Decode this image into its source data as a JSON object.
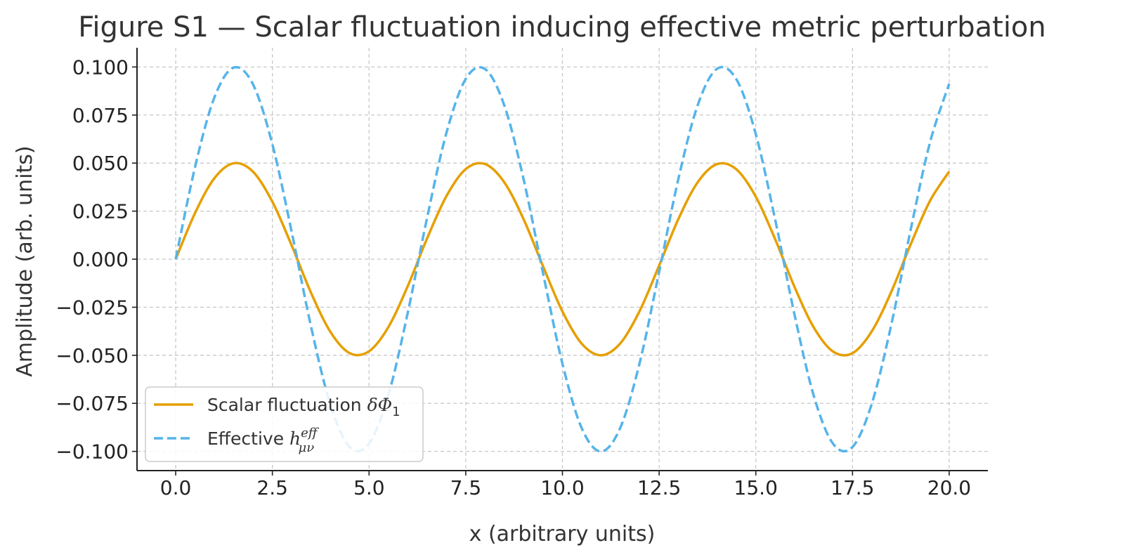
{
  "chart_data": {
    "type": "line",
    "title": "Figure S1 — Scalar fluctuation inducing effective metric perturbation",
    "xlabel": "x (arbitrary units)",
    "ylabel": "Amplitude (arb. units)",
    "xlim": [
      -1.0,
      21.0
    ],
    "ylim": [
      -0.11,
      0.11
    ],
    "xticks": [
      0.0,
      2.5,
      5.0,
      7.5,
      10.0,
      12.5,
      15.0,
      17.5,
      20.0
    ],
    "xtick_labels": [
      "0.0",
      "2.5",
      "5.0",
      "7.5",
      "10.0",
      "12.5",
      "15.0",
      "17.5",
      "20.0"
    ],
    "yticks": [
      0.1,
      0.075,
      0.05,
      0.025,
      0.0,
      -0.025,
      -0.05,
      -0.075,
      -0.1
    ],
    "ytick_labels": [
      "0.100",
      "0.075",
      "0.050",
      "0.025",
      "0.000",
      "−0.025",
      "−0.050",
      "−0.075",
      "−0.100"
    ],
    "grid": true,
    "grid_style": "dashed",
    "legend_position": "lower-left",
    "x": [
      0.0,
      0.5,
      1.0,
      1.5,
      2.0,
      2.5,
      3.0,
      3.5,
      4.0,
      4.5,
      5.0,
      5.5,
      6.0,
      6.5,
      7.0,
      7.5,
      8.0,
      8.5,
      9.0,
      9.5,
      10.0,
      10.5,
      11.0,
      11.5,
      12.0,
      12.5,
      13.0,
      13.5,
      14.0,
      14.5,
      15.0,
      15.5,
      16.0,
      16.5,
      17.0,
      17.5,
      18.0,
      18.5,
      19.0,
      19.5,
      20.0
    ],
    "series": [
      {
        "name": "Scalar fluctuation δΦ₁",
        "legend_prefix": "Scalar fluctuation ",
        "legend_math": "δΦ",
        "legend_sub": "1",
        "color": "#E69F00",
        "style": "solid",
        "values": [
          0.0,
          0.024,
          0.0421,
          0.0499,
          0.0455,
          0.0299,
          0.0071,
          -0.0175,
          -0.0378,
          -0.0489,
          -0.0479,
          -0.0353,
          -0.014,
          0.0108,
          0.0328,
          0.0469,
          0.0495,
          0.0399,
          0.0206,
          -0.0038,
          -0.0272,
          -0.044,
          -0.05,
          -0.0437,
          -0.0268,
          -0.0033,
          0.021,
          0.0401,
          0.0495,
          0.0467,
          0.0325,
          0.0104,
          -0.0144,
          -0.0356,
          -0.0481,
          -0.0489,
          -0.0375,
          -0.0171,
          0.0075,
          0.0302,
          0.0456
        ]
      },
      {
        "name": "Effective h_μν^eff",
        "legend_prefix": "Effective ",
        "legend_math": "h",
        "legend_sub": "μν",
        "legend_sup": "eff",
        "color": "#56B4E9",
        "style": "dashed",
        "values": [
          0.0,
          0.0479,
          0.0841,
          0.0997,
          0.0909,
          0.0598,
          0.0141,
          -0.0351,
          -0.0757,
          -0.0978,
          -0.0959,
          -0.0706,
          -0.0279,
          0.0215,
          0.0657,
          0.0938,
          0.0989,
          0.0798,
          0.0412,
          -0.0075,
          -0.0544,
          -0.088,
          -0.1,
          -0.0875,
          -0.0537,
          -0.0066,
          0.042,
          0.0803,
          0.0991,
          0.0935,
          0.065,
          0.0206,
          -0.0288,
          -0.0712,
          -0.0961,
          -0.0977,
          -0.0751,
          -0.0343,
          0.015,
          0.0605,
          0.0913
        ]
      }
    ]
  }
}
